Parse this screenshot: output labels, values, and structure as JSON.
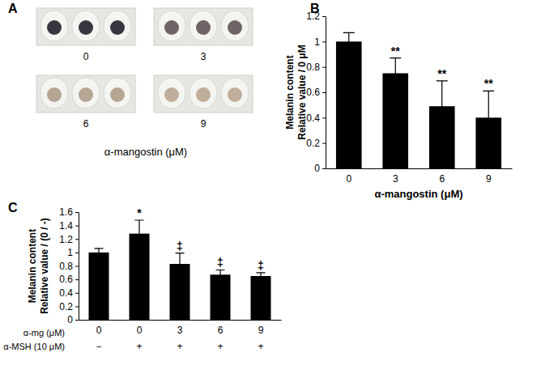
{
  "image_panel": {
    "label": "A",
    "caption": "α-mangostin (μM)",
    "samples": [
      {
        "label": "0",
        "pellet_color": "#3a3640"
      },
      {
        "label": "3",
        "pellet_color": "#6e6466"
      },
      {
        "label": "6",
        "pellet_color": "#b5a593"
      },
      {
        "label": "9",
        "pellet_color": "#bfae9b"
      }
    ]
  },
  "chart_data": [
    {
      "type": "bar",
      "title": "B",
      "categories": [
        "0",
        "3",
        "6",
        "9"
      ],
      "values": [
        1,
        0.75,
        0.49,
        0.4
      ],
      "errors": [
        0.07,
        0.12,
        0.2,
        0.21
      ],
      "annotations": [
        null,
        "**",
        "**",
        "**"
      ],
      "color": "#000000",
      "x_label": "α-mangostin (μM)",
      "y_label": [
        "Melanin content",
        "Relative value / 0 μM"
      ],
      "ylim": [
        0,
        1.2
      ],
      "yticks": [
        0,
        0.2,
        0.4,
        0.6,
        0.8,
        1,
        1.2
      ]
    },
    {
      "type": "bar",
      "title": "C",
      "category_rows": [
        "α-mg (μM)",
        "α-MSH (10 μM)"
      ],
      "categories": [
        [
          "0",
          "−"
        ],
        [
          "0",
          "+"
        ],
        [
          "3",
          "+"
        ],
        [
          "6",
          "+"
        ],
        [
          "9",
          "+"
        ]
      ],
      "values": [
        1,
        1.28,
        0.83,
        0.67,
        0.65
      ],
      "errors": [
        0.06,
        0.2,
        0.16,
        0.07,
        0.05
      ],
      "annotations": [
        null,
        "*",
        "‡",
        "‡",
        "‡"
      ],
      "color": "#000000",
      "y_label": [
        "Melanin content",
        "Relative value / (0 / -)"
      ],
      "ylim": [
        0,
        1.6
      ],
      "yticks": [
        0,
        0.2,
        0.4,
        0.6,
        0.8,
        1,
        1.2,
        1.4,
        1.6
      ]
    }
  ]
}
